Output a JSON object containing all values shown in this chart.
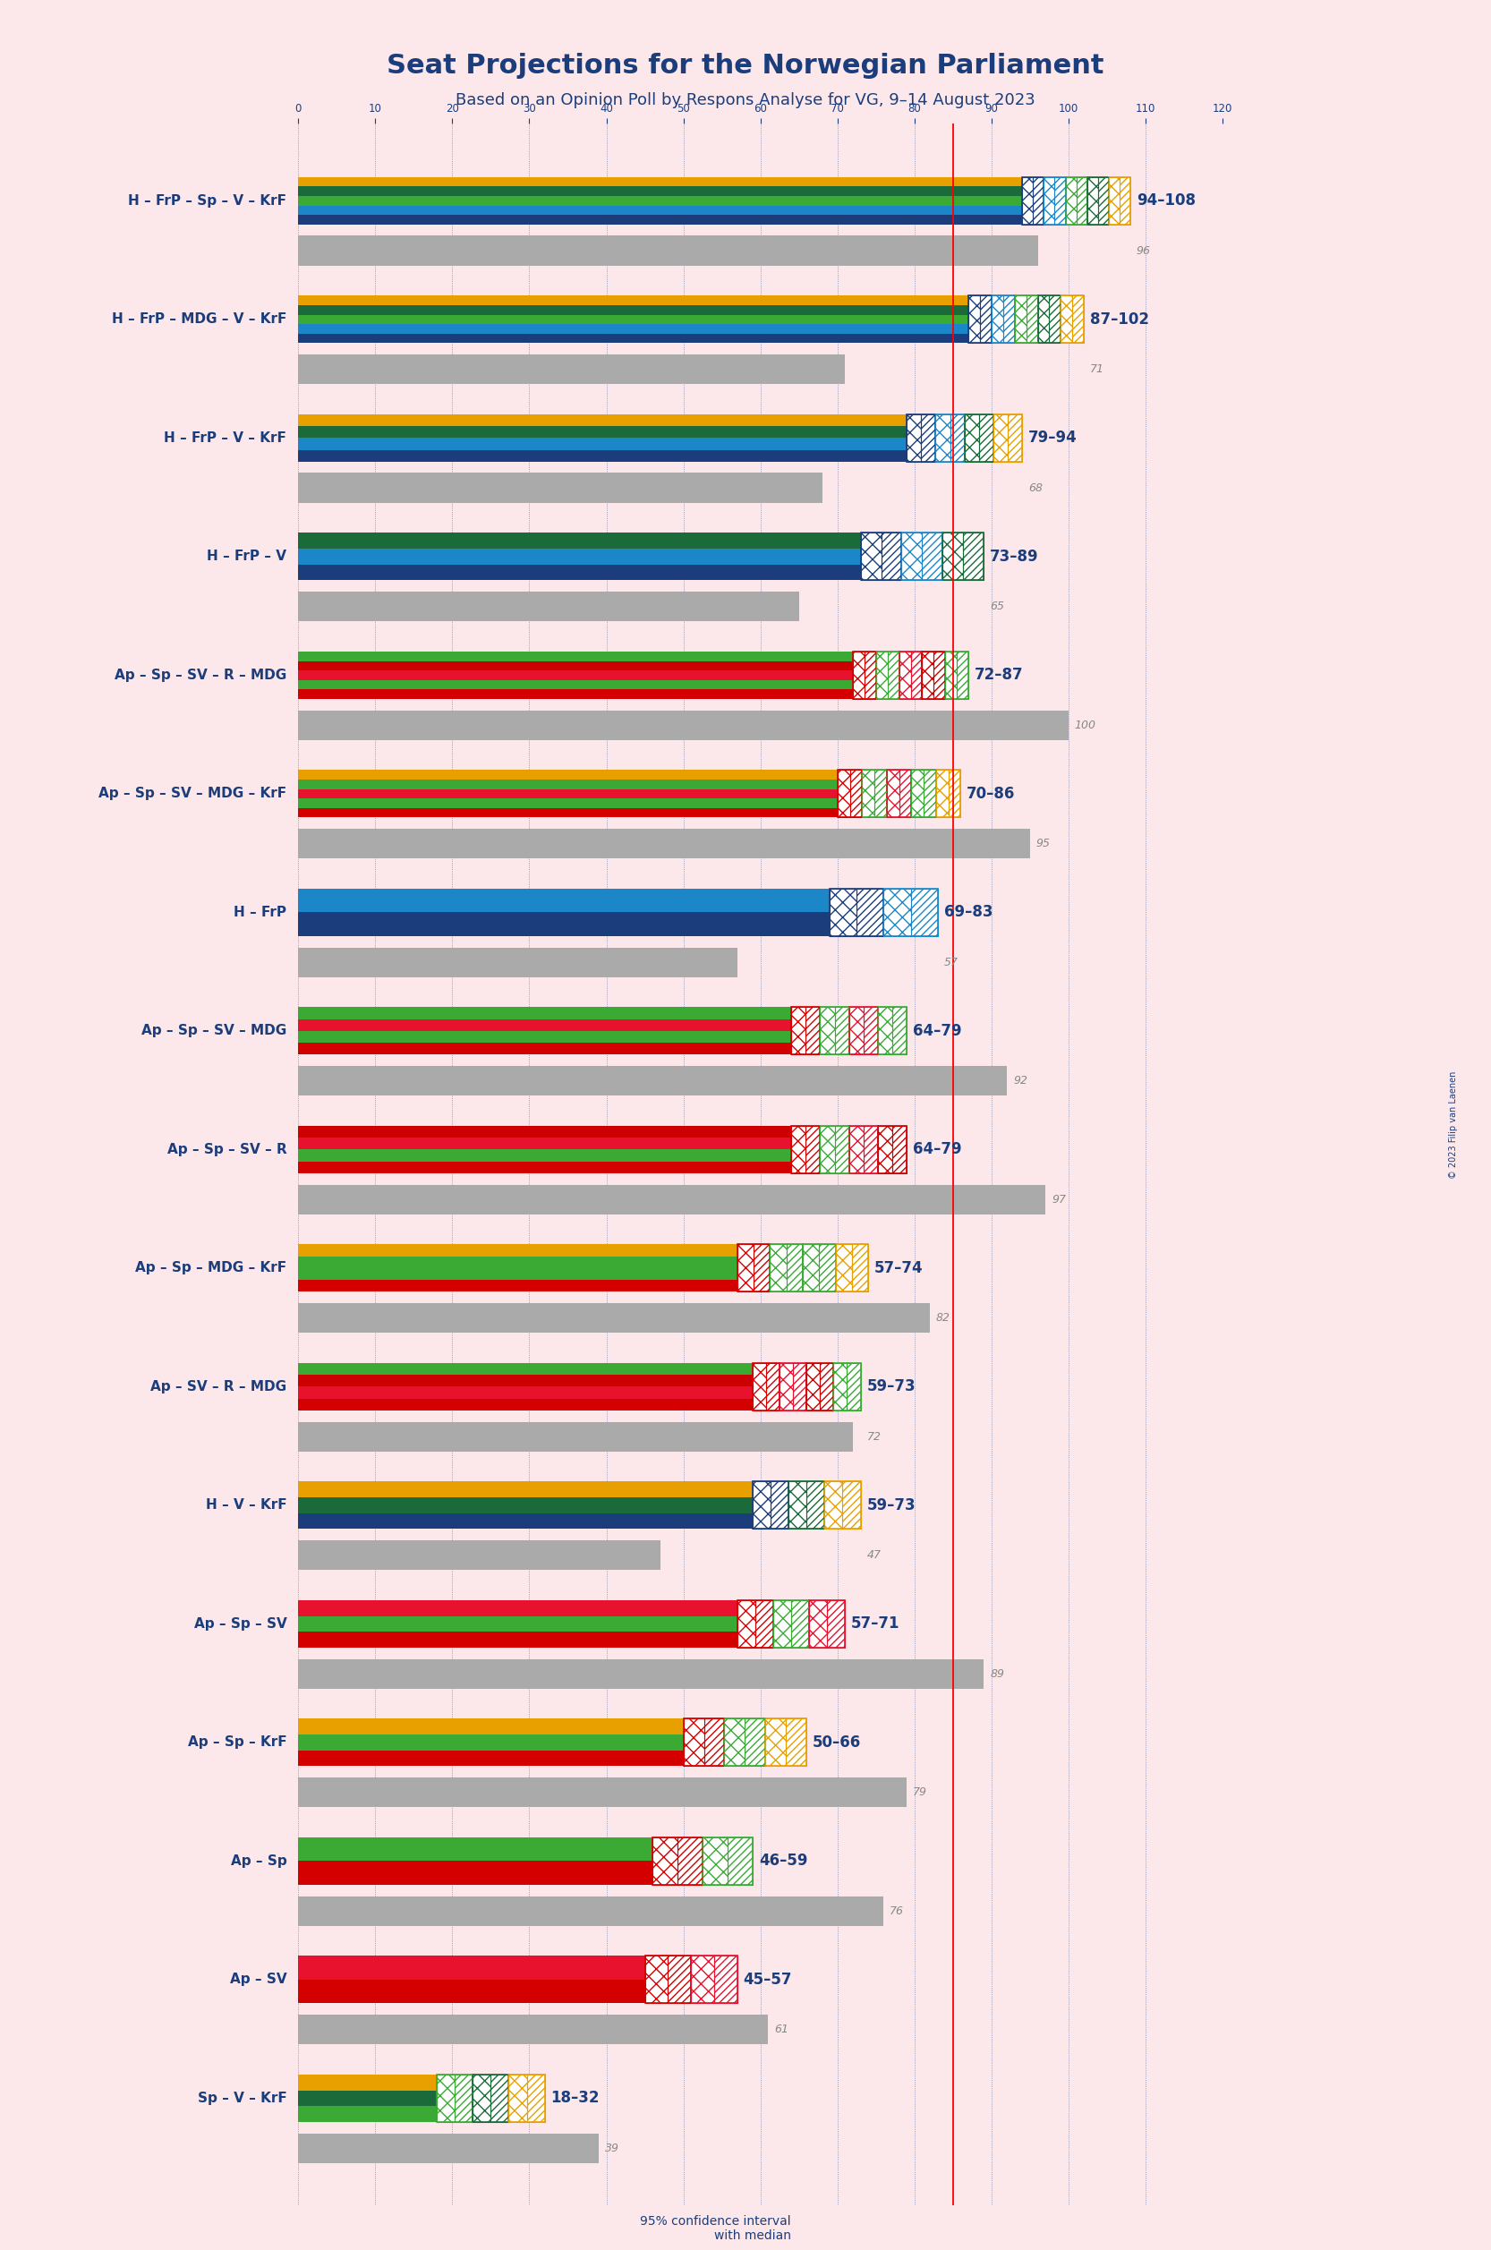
{
  "title": "Seat Projections for the Norwegian Parliament",
  "subtitle": "Based on an Opinion Poll by Respons Analyse for VG, 9–14 August 2023",
  "background_color": "#fce8ea",
  "majority_line": 85,
  "xlim": [
    0,
    120
  ],
  "xtick_step": 10,
  "copyright": "© 2023 Filip van Laenen",
  "coalitions": [
    {
      "label": "H – FrP – Sp – V – KrF",
      "ci_low": 94,
      "ci_high": 108,
      "last": 96,
      "colors": [
        "#1b3d7c",
        "#1b87c8",
        "#3aaa35",
        "#1b6b3a",
        "#e8a000"
      ],
      "underline": false
    },
    {
      "label": "H – FrP – MDG – V – KrF",
      "ci_low": 87,
      "ci_high": 102,
      "last": 71,
      "colors": [
        "#1b3d7c",
        "#1b87c8",
        "#3aaa35",
        "#1b6b3a",
        "#e8a000"
      ],
      "underline": false
    },
    {
      "label": "H – FrP – V – KrF",
      "ci_low": 79,
      "ci_high": 94,
      "last": 68,
      "colors": [
        "#1b3d7c",
        "#1b87c8",
        "#1b6b3a",
        "#e8a000"
      ],
      "underline": false
    },
    {
      "label": "H – FrP – V",
      "ci_low": 73,
      "ci_high": 89,
      "last": 65,
      "colors": [
        "#1b3d7c",
        "#1b87c8",
        "#1b6b3a"
      ],
      "underline": false
    },
    {
      "label": "Ap – Sp – SV – R – MDG",
      "ci_low": 72,
      "ci_high": 87,
      "last": 100,
      "colors": [
        "#d40000",
        "#3aaa35",
        "#e8112e",
        "#cc0000",
        "#3aaa35"
      ],
      "underline": false
    },
    {
      "label": "Ap – Sp – SV – MDG – KrF",
      "ci_low": 70,
      "ci_high": 86,
      "last": 95,
      "colors": [
        "#d40000",
        "#3aaa35",
        "#e8112e",
        "#3aaa35",
        "#e8a000"
      ],
      "underline": false
    },
    {
      "label": "H – FrP",
      "ci_low": 69,
      "ci_high": 83,
      "last": 57,
      "colors": [
        "#1b3d7c",
        "#1b87c8"
      ],
      "underline": false
    },
    {
      "label": "Ap – Sp – SV – MDG",
      "ci_low": 64,
      "ci_high": 79,
      "last": 92,
      "colors": [
        "#d40000",
        "#3aaa35",
        "#e8112e",
        "#3aaa35"
      ],
      "underline": false
    },
    {
      "label": "Ap – Sp – SV – R",
      "ci_low": 64,
      "ci_high": 79,
      "last": 97,
      "colors": [
        "#d40000",
        "#3aaa35",
        "#e8112e",
        "#cc0000"
      ],
      "underline": false
    },
    {
      "label": "Ap – Sp – MDG – KrF",
      "ci_low": 57,
      "ci_high": 74,
      "last": 82,
      "colors": [
        "#d40000",
        "#3aaa35",
        "#3aaa35",
        "#e8a000"
      ],
      "underline": false
    },
    {
      "label": "Ap – SV – R – MDG",
      "ci_low": 59,
      "ci_high": 73,
      "last": 72,
      "colors": [
        "#d40000",
        "#e8112e",
        "#cc0000",
        "#3aaa35"
      ],
      "underline": false
    },
    {
      "label": "H – V – KrF",
      "ci_low": 59,
      "ci_high": 73,
      "last": 47,
      "colors": [
        "#1b3d7c",
        "#1b6b3a",
        "#e8a000"
      ],
      "underline": false
    },
    {
      "label": "Ap – Sp – SV",
      "ci_low": 57,
      "ci_high": 71,
      "last": 89,
      "colors": [
        "#d40000",
        "#3aaa35",
        "#e8112e"
      ],
      "underline": false
    },
    {
      "label": "Ap – Sp – KrF",
      "ci_low": 50,
      "ci_high": 66,
      "last": 79,
      "colors": [
        "#d40000",
        "#3aaa35",
        "#e8a000"
      ],
      "underline": false
    },
    {
      "label": "Ap – Sp",
      "ci_low": 46,
      "ci_high": 59,
      "last": 76,
      "colors": [
        "#d40000",
        "#3aaa35"
      ],
      "underline": false
    },
    {
      "label": "Ap – SV",
      "ci_low": 45,
      "ci_high": 57,
      "last": 61,
      "colors": [
        "#d40000",
        "#e8112e"
      ],
      "underline": true
    },
    {
      "label": "Sp – V – KrF",
      "ci_low": 18,
      "ci_high": 32,
      "last": 39,
      "colors": [
        "#3aaa35",
        "#1b6b3a",
        "#e8a000"
      ],
      "underline": false
    }
  ]
}
